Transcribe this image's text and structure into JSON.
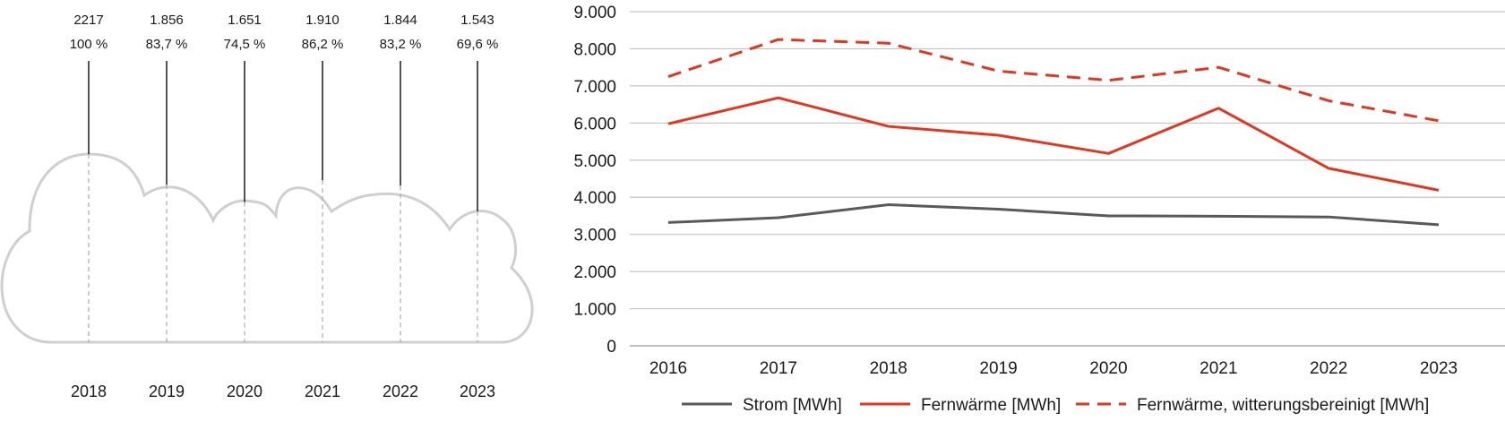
{
  "chart_data": [
    {
      "type": "cloud-bars",
      "categories": [
        "2018",
        "2019",
        "2020",
        "2021",
        "2022",
        "2023"
      ],
      "values": [
        2217,
        1856,
        1651,
        1910,
        1844,
        1543
      ],
      "value_labels": [
        "2217",
        "1.856",
        "1.651",
        "1.910",
        "1.844",
        "1.543"
      ],
      "percent_labels": [
        "100 %",
        "83,7 %",
        "74,5 %",
        "86,2 %",
        "83,2 %",
        "69,6 %"
      ],
      "percent": [
        100,
        83.7,
        74.5,
        86.2,
        83.2,
        69.6
      ],
      "colors": {
        "cloud": "#cfcfcf",
        "lines": "#1a1a1a"
      }
    },
    {
      "type": "line",
      "x": [
        "2016",
        "2017",
        "2018",
        "2019",
        "2020",
        "2021",
        "2022",
        "2023"
      ],
      "ylim": [
        0,
        9000
      ],
      "yticks": [
        0,
        1000,
        2000,
        3000,
        4000,
        5000,
        6000,
        7000,
        8000,
        9000
      ],
      "ytick_labels": [
        "0",
        "1.000",
        "2.000",
        "3.000",
        "4.000",
        "5.000",
        "6.000",
        "7.000",
        "8.000",
        "9.000"
      ],
      "grid": true,
      "legend_position": "bottom",
      "series": [
        {
          "name": "Strom [MWh]",
          "values": [
            3320,
            3450,
            3800,
            3680,
            3500,
            3490,
            3470,
            3260
          ],
          "color": "#58595b",
          "dash": "solid"
        },
        {
          "name": "Fernwärme [MWh]",
          "values": [
            5980,
            6680,
            5910,
            5670,
            5180,
            6400,
            4780,
            4190
          ],
          "color": "#e2361f",
          "dash": "solid"
        },
        {
          "name": "Fernwärme, witterungsbereinigt [MWh]",
          "values": [
            7250,
            8250,
            8150,
            7400,
            7150,
            7500,
            6600,
            6060
          ],
          "color": "#e2361f",
          "dash": "dashed"
        }
      ]
    }
  ]
}
